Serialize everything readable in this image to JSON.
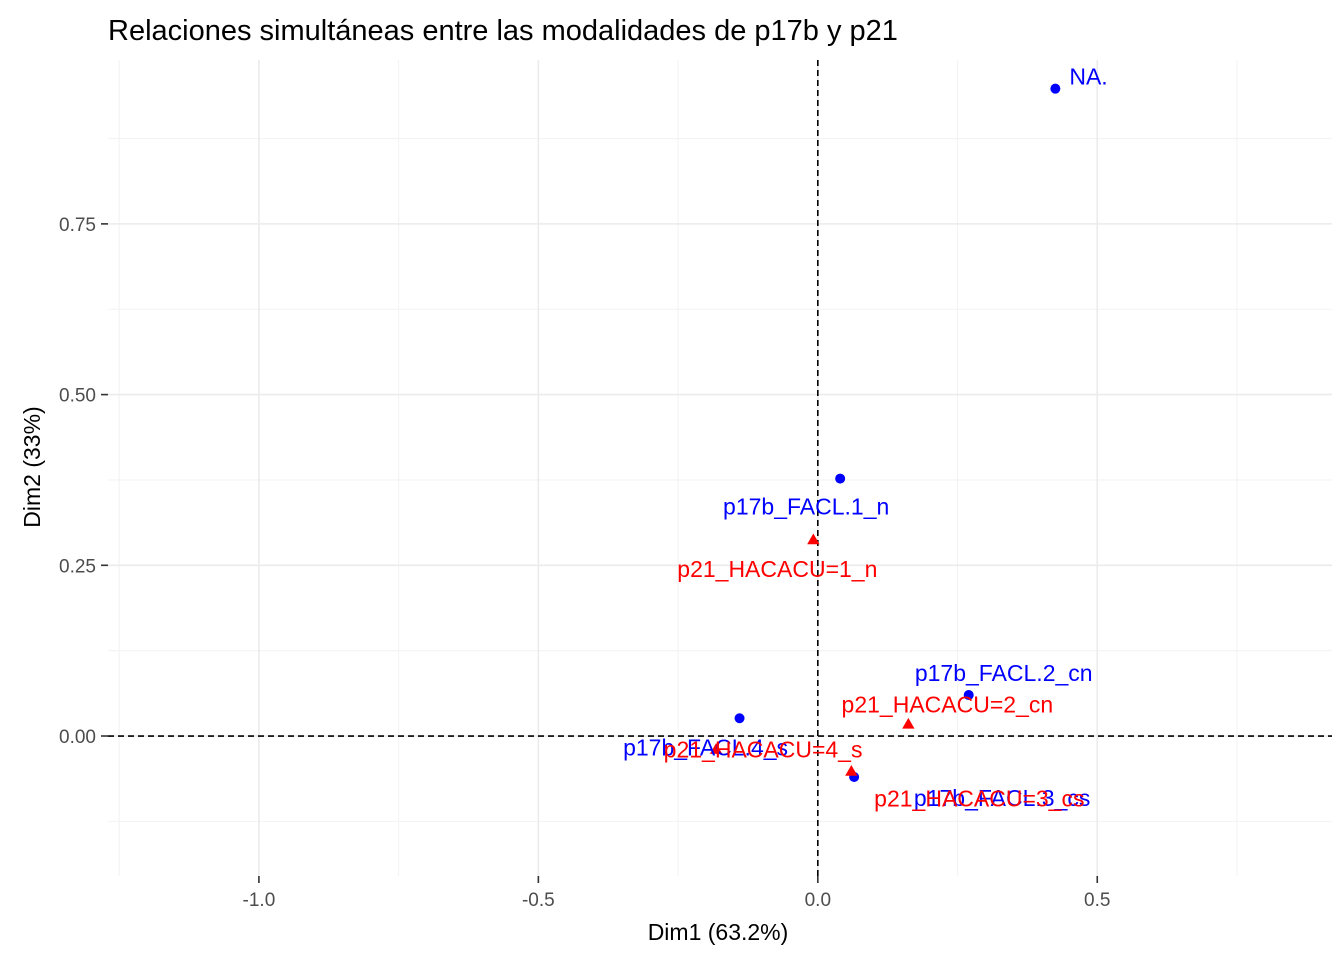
{
  "chart_data": {
    "type": "scatter",
    "title": "Relaciones simultáneas entre las modalidades de p17b y p21",
    "xlabel": "Dim1 (63.2%)",
    "ylabel": "Dim2 (33%)",
    "xlim": [
      -1.27,
      0.92
    ],
    "ylim": [
      -0.205,
      0.99
    ],
    "x_ticks": [
      -1.0,
      -0.5,
      0.0,
      0.5
    ],
    "x_tick_labels": [
      "-1.0",
      "-0.5",
      "0.0",
      "0.5"
    ],
    "y_ticks": [
      0.0,
      0.25,
      0.5,
      0.75
    ],
    "y_tick_labels": [
      "0.00",
      "0.25",
      "0.50",
      "0.75"
    ],
    "grid": true,
    "reference_lines": {
      "x": 0,
      "y": 0,
      "style": "dashed"
    },
    "series": [
      {
        "color": "#0000ff",
        "marker": "circle",
        "points": [
          {
            "label": "NA.",
            "x": 0.425,
            "y": 0.948
          },
          {
            "label": "p17b_FACL.1_n",
            "x": 0.04,
            "y": 0.377
          },
          {
            "label": "p17b_FACL.2_cn",
            "x": 0.27,
            "y": 0.06
          },
          {
            "label": "p17b_FACL.4_s",
            "x": -0.14,
            "y": 0.026
          },
          {
            "label": "p17b_FACL.3_cs",
            "x": 0.065,
            "y": -0.06
          }
        ]
      },
      {
        "color": "#ff0000",
        "marker": "triangle",
        "points": [
          {
            "label": "p21_HACACU=1_n",
            "x": -0.008,
            "y": 0.287
          },
          {
            "label": "p21_HACACU=2_cn",
            "x": 0.162,
            "y": 0.017
          },
          {
            "label": "p21_HACACU=4_s",
            "x": -0.182,
            "y": -0.02
          },
          {
            "label": "p21_HACACU=3_cs",
            "x": 0.06,
            "y": -0.052
          }
        ]
      }
    ]
  }
}
